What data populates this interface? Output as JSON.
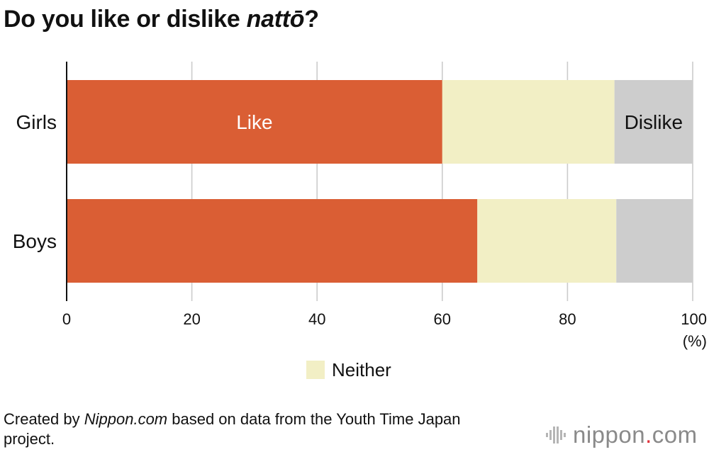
{
  "title": {
    "prefix": "Do you like or dislike ",
    "italic": "nattō",
    "suffix": "?"
  },
  "chart_data": {
    "type": "bar",
    "orientation": "horizontal",
    "stacked": true,
    "categories": [
      "Girls",
      "Boys"
    ],
    "series": [
      {
        "name": "Like",
        "values": [
          60.0,
          65.6
        ],
        "color": "#da5e34"
      },
      {
        "name": "Neither",
        "values": [
          27.5,
          22.2
        ],
        "color": "#f2efc5"
      },
      {
        "name": "Dislike",
        "values": [
          12.5,
          12.2
        ],
        "color": "#cdcdcd"
      }
    ],
    "xlim": [
      0,
      100
    ],
    "xticks": [
      0,
      20,
      40,
      60,
      80,
      100
    ],
    "xunit": "(%)",
    "grid": true,
    "in_bar_labels": [
      {
        "category": "Girls",
        "series": "Like",
        "text": "Like",
        "color": "#ffffff"
      },
      {
        "category": "Girls",
        "series": "Dislike",
        "text": "Dislike",
        "color": "#111111"
      }
    ],
    "legend": {
      "position": "bottom-center",
      "entries": [
        "Neither"
      ]
    }
  },
  "footnote": {
    "prefix": "Created by ",
    "italic": "Nippon.com",
    "suffix": " based on data from the Youth Time Japan project."
  },
  "logo": {
    "name": "nippon",
    "dot": ".",
    "suffix": "com"
  }
}
